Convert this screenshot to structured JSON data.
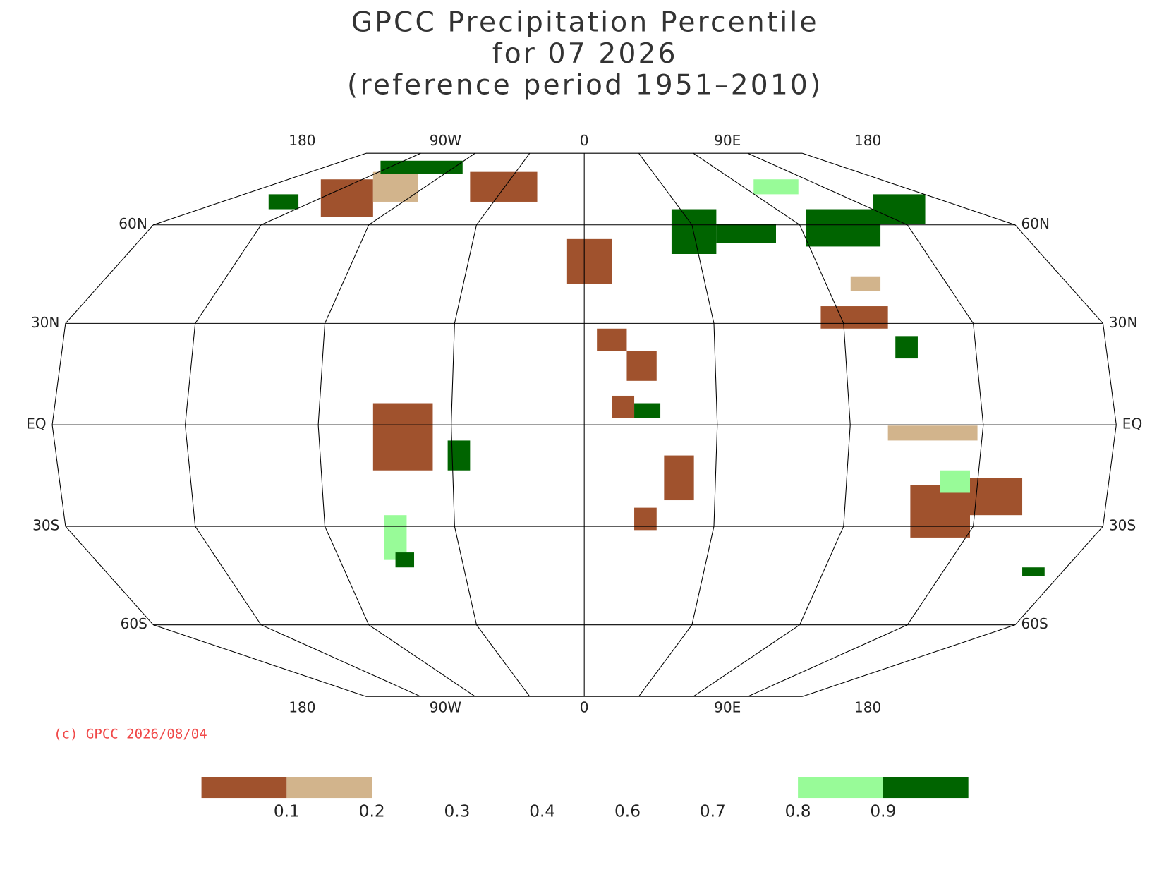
{
  "title": [
    "GPCC Precipitation Percentile",
    "for 07 2026",
    "(reference period 1951–2010)"
  ],
  "map": {
    "top_lon_labels": [
      "180",
      "90W",
      "0",
      "90E",
      "180"
    ],
    "bottom_lon_labels": [
      "180",
      "90W",
      "0",
      "90E",
      "180"
    ],
    "lat_labels": [
      "60N",
      "30N",
      "EQ",
      "30S",
      "60S"
    ]
  },
  "credit": "(c) GPCC 2026/08/04",
  "legend": {
    "colors": [
      "#a0522d",
      "#d2b48c",
      "#ffffff",
      "#ffffff",
      "#ffffff",
      "#ffffff",
      "#ffffff",
      "#98fb98",
      "#006400"
    ],
    "labels": [
      "0.1",
      "0.2",
      "0.3",
      "0.4",
      "0.6",
      "0.7",
      "0.8",
      "0.9"
    ]
  }
}
